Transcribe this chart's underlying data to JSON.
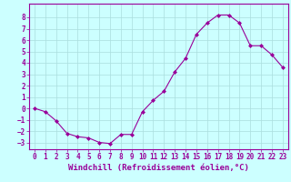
{
  "x": [
    0,
    1,
    2,
    3,
    4,
    5,
    6,
    7,
    8,
    9,
    10,
    11,
    12,
    13,
    14,
    15,
    16,
    17,
    18,
    19,
    20,
    21,
    22,
    23
  ],
  "y": [
    0.0,
    -0.3,
    -1.1,
    -2.2,
    -2.5,
    -2.6,
    -3.0,
    -3.1,
    -2.3,
    -2.3,
    -0.3,
    0.7,
    1.5,
    3.2,
    4.4,
    6.5,
    7.5,
    8.2,
    8.2,
    7.5,
    5.5,
    5.5,
    4.7,
    3.6
  ],
  "line_color": "#990099",
  "marker": "D",
  "marker_size": 2,
  "bg_color": "#ccffff",
  "grid_color": "#aadddd",
  "xlabel": "Windchill (Refroidissement éolien,°C)",
  "xlabel_color": "#990099",
  "tick_color": "#990099",
  "yticks": [
    -3,
    -2,
    -1,
    0,
    1,
    2,
    3,
    4,
    5,
    6,
    7,
    8
  ],
  "xticks": [
    0,
    1,
    2,
    3,
    4,
    5,
    6,
    7,
    8,
    9,
    10,
    11,
    12,
    13,
    14,
    15,
    16,
    17,
    18,
    19,
    20,
    21,
    22,
    23
  ],
  "xlim": [
    -0.5,
    23.5
  ],
  "ylim": [
    -3.6,
    9.2
  ],
  "tick_fontsize": 5.5,
  "xlabel_fontsize": 6.5
}
